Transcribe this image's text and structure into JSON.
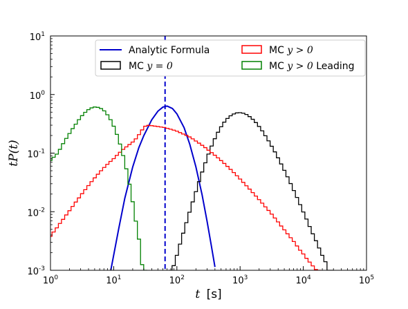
{
  "chart_data": {
    "type": "line",
    "xscale": "log",
    "yscale": "log",
    "xlim": [
      1,
      100000
    ],
    "ylim": [
      0.001,
      10
    ],
    "xlabel_var": "t",
    "xlabel_unit": "[s]",
    "ylabel": "tP(t)",
    "grid": false,
    "legend_placement": "top-center",
    "x_ticks": [
      {
        "value": 1,
        "base": "10",
        "exp": "0"
      },
      {
        "value": 10,
        "base": "10",
        "exp": "1"
      },
      {
        "value": 100,
        "base": "10",
        "exp": "2"
      },
      {
        "value": 1000,
        "base": "10",
        "exp": "3"
      },
      {
        "value": 10000,
        "base": "10",
        "exp": "4"
      },
      {
        "value": 100000,
        "base": "10",
        "exp": "5"
      }
    ],
    "y_ticks": [
      {
        "value": 0.001,
        "base": "10",
        "exp": "-3"
      },
      {
        "value": 0.01,
        "base": "10",
        "exp": "-2"
      },
      {
        "value": 0.1,
        "base": "10",
        "exp": "-1"
      },
      {
        "value": 1,
        "base": "10",
        "exp": "0"
      },
      {
        "value": 10,
        "base": "10",
        "exp": "1"
      }
    ],
    "vline": {
      "x": 65,
      "color": "#0000cc",
      "style": "dashed"
    },
    "series": [
      {
        "name": "Analytic Formula",
        "label_text": "Analytic Formula",
        "color": "#0000cc",
        "style": "line",
        "points": [
          [
            9.0,
            0.001
          ],
          [
            12.0,
            0.0051
          ],
          [
            15.0,
            0.017
          ],
          [
            20.0,
            0.058
          ],
          [
            25.0,
            0.124
          ],
          [
            30.0,
            0.2
          ],
          [
            40.0,
            0.371
          ],
          [
            50.0,
            0.519
          ],
          [
            60.0,
            0.61
          ],
          [
            70.0,
            0.635
          ],
          [
            85.0,
            0.577
          ],
          [
            100.0,
            0.468
          ],
          [
            130.0,
            0.272
          ],
          [
            160.0,
            0.141
          ],
          [
            200.0,
            0.058
          ],
          [
            250.0,
            0.0196
          ],
          [
            300.0,
            0.0069
          ],
          [
            350.0,
            0.00266
          ],
          [
            400.0,
            0.00114
          ]
        ]
      },
      {
        "name": "MC y=0",
        "label_prefix": "MC ",
        "label_math": "y = 0",
        "color": "#000000",
        "style": "step",
        "points": [
          [
            79,
            0.001
          ],
          [
            89,
            0.0012
          ],
          [
            100,
            0.0018
          ],
          [
            112,
            0.0028
          ],
          [
            126,
            0.0043
          ],
          [
            141,
            0.0065
          ],
          [
            158,
            0.0098
          ],
          [
            178,
            0.0147
          ],
          [
            200,
            0.022
          ],
          [
            224,
            0.0326
          ],
          [
            251,
            0.0476
          ],
          [
            282,
            0.0684
          ],
          [
            316,
            0.0963
          ],
          [
            355,
            0.132
          ],
          [
            398,
            0.176
          ],
          [
            447,
            0.227
          ],
          [
            501,
            0.282
          ],
          [
            562,
            0.338
          ],
          [
            631,
            0.39
          ],
          [
            708,
            0.434
          ],
          [
            794,
            0.466
          ],
          [
            891,
            0.486
          ],
          [
            1000,
            0.49
          ],
          [
            1122,
            0.48
          ],
          [
            1259,
            0.456
          ],
          [
            1413,
            0.42
          ],
          [
            1585,
            0.378
          ],
          [
            1778,
            0.332
          ],
          [
            1995,
            0.285
          ],
          [
            2239,
            0.24
          ],
          [
            2512,
            0.198
          ],
          [
            2818,
            0.162
          ],
          [
            3162,
            0.131
          ],
          [
            3548,
            0.105
          ],
          [
            3981,
            0.0831
          ],
          [
            4467,
            0.0653
          ],
          [
            5012,
            0.0509
          ],
          [
            5623,
            0.0394
          ],
          [
            6310,
            0.0302
          ],
          [
            7079,
            0.023
          ],
          [
            7943,
            0.0175
          ],
          [
            8913,
            0.0132
          ],
          [
            10000,
            0.0099
          ],
          [
            11220,
            0.0075
          ],
          [
            12589,
            0.0056
          ],
          [
            14125,
            0.0042
          ],
          [
            15849,
            0.0032
          ],
          [
            17783,
            0.0024
          ],
          [
            19953,
            0.0018
          ],
          [
            22387,
            0.0014
          ],
          [
            25119,
            0.001
          ],
          [
            28184,
            0.001
          ]
        ]
      },
      {
        "name": "MC y>0",
        "label_prefix": "MC ",
        "label_math": "y > 0",
        "color": "#ff0000",
        "style": "step",
        "points": [
          [
            1.0,
            0.0038
          ],
          [
            1.12,
            0.0045
          ],
          [
            1.26,
            0.0053
          ],
          [
            1.41,
            0.0063
          ],
          [
            1.58,
            0.0074
          ],
          [
            1.78,
            0.0088
          ],
          [
            2.0,
            0.0104
          ],
          [
            2.24,
            0.0123
          ],
          [
            2.51,
            0.0146
          ],
          [
            2.82,
            0.0172
          ],
          [
            3.16,
            0.0203
          ],
          [
            3.55,
            0.0238
          ],
          [
            3.98,
            0.0279
          ],
          [
            4.47,
            0.0326
          ],
          [
            5.01,
            0.0378
          ],
          [
            5.62,
            0.0436
          ],
          [
            6.31,
            0.05
          ],
          [
            7.08,
            0.0569
          ],
          [
            7.94,
            0.0643
          ],
          [
            8.91,
            0.0722
          ],
          [
            10.0,
            0.0804
          ],
          [
            11.22,
            0.0916
          ],
          [
            12.59,
            0.1034
          ],
          [
            14.13,
            0.1156
          ],
          [
            15.85,
            0.1278
          ],
          [
            17.78,
            0.1403
          ],
          [
            19.95,
            0.1544
          ],
          [
            22.39,
            0.1753
          ],
          [
            25.12,
            0.207
          ],
          [
            28.18,
            0.249
          ],
          [
            31.62,
            0.288
          ],
          [
            35.48,
            0.298
          ],
          [
            39.81,
            0.294
          ],
          [
            44.67,
            0.289
          ],
          [
            50.12,
            0.284
          ],
          [
            56.23,
            0.279
          ],
          [
            63.1,
            0.274
          ],
          [
            70.79,
            0.265
          ],
          [
            79.43,
            0.256
          ],
          [
            89.13,
            0.247
          ],
          [
            100.0,
            0.237
          ],
          [
            112.2,
            0.224
          ],
          [
            125.9,
            0.212
          ],
          [
            141.3,
            0.201
          ],
          [
            158.5,
            0.189
          ],
          [
            177.8,
            0.175
          ],
          [
            199.5,
            0.161
          ],
          [
            223.9,
            0.148
          ],
          [
            251.2,
            0.136
          ],
          [
            281.8,
            0.124
          ],
          [
            316.2,
            0.112
          ],
          [
            354.8,
            0.102
          ],
          [
            398.1,
            0.092
          ],
          [
            446.7,
            0.083
          ],
          [
            501.2,
            0.0745
          ],
          [
            562.3,
            0.0666
          ],
          [
            631.0,
            0.0594
          ],
          [
            707.9,
            0.0527
          ],
          [
            794.3,
            0.0466
          ],
          [
            891.3,
            0.0411
          ],
          [
            1000,
            0.0361
          ],
          [
            1122,
            0.0317
          ],
          [
            1259,
            0.0277
          ],
          [
            1413,
            0.0243
          ],
          [
            1585,
            0.0212
          ],
          [
            1778,
            0.0185
          ],
          [
            1995,
            0.0161
          ],
          [
            2239,
            0.014
          ],
          [
            2512,
            0.0121
          ],
          [
            2818,
            0.0105
          ],
          [
            3162,
            0.0091
          ],
          [
            3548,
            0.0078
          ],
          [
            3981,
            0.0067
          ],
          [
            4467,
            0.0057
          ],
          [
            5012,
            0.0049
          ],
          [
            5623,
            0.0042
          ],
          [
            6310,
            0.0036
          ],
          [
            7079,
            0.0031
          ],
          [
            7943,
            0.0026
          ],
          [
            8913,
            0.0022
          ],
          [
            10000,
            0.0019
          ],
          [
            11220,
            0.0016
          ],
          [
            12589,
            0.00138
          ],
          [
            14125,
            0.00119
          ],
          [
            15849,
            0.00103
          ],
          [
            17783,
            0.001
          ]
        ]
      },
      {
        "name": "MC y>0 Leading",
        "label_prefix": "MC ",
        "label_math": "y > 0",
        "label_suffix": " Leading",
        "color": "#008000",
        "style": "step",
        "points": [
          [
            1.0,
            0.075
          ],
          [
            1.12,
            0.085
          ],
          [
            1.26,
            0.096
          ],
          [
            1.41,
            0.116
          ],
          [
            1.58,
            0.145
          ],
          [
            1.78,
            0.178
          ],
          [
            2.0,
            0.216
          ],
          [
            2.24,
            0.262
          ],
          [
            2.51,
            0.312
          ],
          [
            2.82,
            0.372
          ],
          [
            3.16,
            0.436
          ],
          [
            3.55,
            0.497
          ],
          [
            3.98,
            0.552
          ],
          [
            4.47,
            0.592
          ],
          [
            5.01,
            0.612
          ],
          [
            5.62,
            0.604
          ],
          [
            6.31,
            0.576
          ],
          [
            7.08,
            0.526
          ],
          [
            7.94,
            0.452
          ],
          [
            8.91,
            0.372
          ],
          [
            10.0,
            0.288
          ],
          [
            11.22,
            0.209
          ],
          [
            12.59,
            0.143
          ],
          [
            14.13,
            0.091
          ],
          [
            15.85,
            0.054
          ],
          [
            17.78,
            0.0295
          ],
          [
            19.95,
            0.0148
          ],
          [
            22.39,
            0.0069
          ],
          [
            25.12,
            0.0034
          ],
          [
            28.18,
            0.00125
          ],
          [
            31.62,
            0.001
          ]
        ]
      }
    ]
  }
}
